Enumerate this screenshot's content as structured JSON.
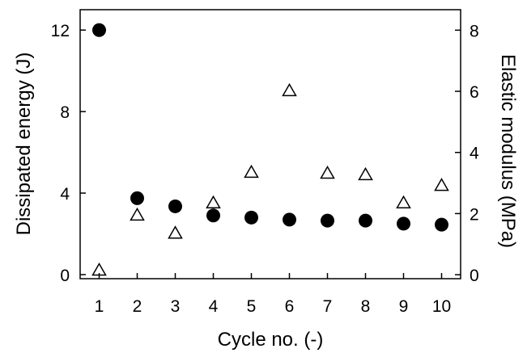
{
  "chart_data": {
    "type": "scatter",
    "title": "",
    "xlabel": "Cycle no. (-)",
    "ylabel_left": "Dissipated energy (J)",
    "ylabel_right": "Elastic modulus (MPa)",
    "x": [
      1,
      2,
      3,
      4,
      5,
      6,
      7,
      8,
      9,
      10
    ],
    "x_ticks": [
      "1",
      "2",
      "3",
      "4",
      "5",
      "6",
      "7",
      "8",
      "9",
      "10"
    ],
    "xlim": [
      0.5,
      10.5
    ],
    "ylim_left": [
      -0.2,
      13
    ],
    "ylim_right": [
      -0.13,
      8.67
    ],
    "yticks_left": [
      0,
      4,
      8,
      12
    ],
    "yticks_right": [
      0,
      2,
      4,
      6,
      8
    ],
    "grid": false,
    "series": [
      {
        "axis": "left",
        "marker": "filled-circle",
        "color": "#000000",
        "values": [
          12.0,
          3.75,
          3.35,
          2.9,
          2.8,
          2.7,
          2.65,
          2.65,
          2.5,
          2.45
        ]
      },
      {
        "axis": "right",
        "marker": "open-triangle",
        "color": "#000000",
        "values": [
          0.13,
          1.93,
          1.34,
          2.33,
          3.33,
          6.0,
          3.3,
          3.25,
          2.33,
          2.9
        ]
      }
    ]
  }
}
